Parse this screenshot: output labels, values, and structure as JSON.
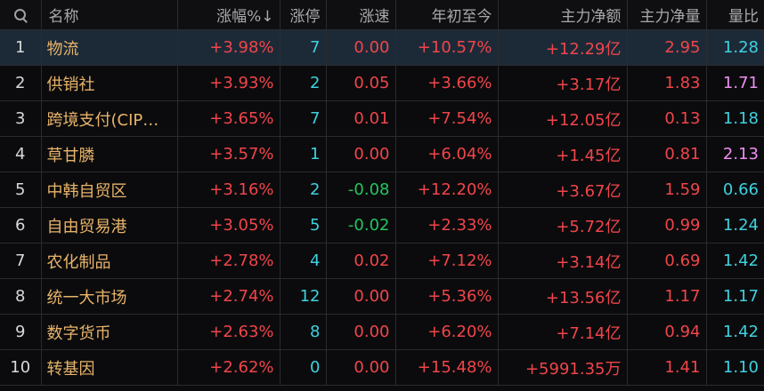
{
  "header": {
    "name": "名称",
    "change_pct": "涨幅%↓",
    "limit_up": "涨停",
    "speed": "涨速",
    "ytd": "年初至今",
    "main_net": "主力净额",
    "main_net_ratio": "主力净量",
    "volume_ratio": "量比"
  },
  "rows": [
    {
      "idx": "1",
      "name": "物流",
      "change_pct": "+3.98%",
      "limit_up": "7",
      "speed": "0.00",
      "ytd": "+10.57%",
      "main_net": "+12.29亿",
      "main_net_ratio": "2.95",
      "volume_ratio": "1.28"
    },
    {
      "idx": "2",
      "name": "供销社",
      "change_pct": "+3.93%",
      "limit_up": "2",
      "speed": "0.05",
      "ytd": "+3.66%",
      "main_net": "+3.17亿",
      "main_net_ratio": "1.83",
      "volume_ratio": "1.71"
    },
    {
      "idx": "3",
      "name": "跨境支付(CIP…",
      "change_pct": "+3.65%",
      "limit_up": "7",
      "speed": "0.01",
      "ytd": "+7.54%",
      "main_net": "+12.05亿",
      "main_net_ratio": "0.13",
      "volume_ratio": "1.18"
    },
    {
      "idx": "4",
      "name": "草甘膦",
      "change_pct": "+3.57%",
      "limit_up": "1",
      "speed": "0.00",
      "ytd": "+6.04%",
      "main_net": "+1.45亿",
      "main_net_ratio": "0.81",
      "volume_ratio": "2.13"
    },
    {
      "idx": "5",
      "name": "中韩自贸区",
      "change_pct": "+3.16%",
      "limit_up": "2",
      "speed": "-0.08",
      "ytd": "+12.20%",
      "main_net": "+3.67亿",
      "main_net_ratio": "1.59",
      "volume_ratio": "0.66"
    },
    {
      "idx": "6",
      "name": "自由贸易港",
      "change_pct": "+3.05%",
      "limit_up": "5",
      "speed": "-0.02",
      "ytd": "+2.33%",
      "main_net": "+5.72亿",
      "main_net_ratio": "0.99",
      "volume_ratio": "1.24"
    },
    {
      "idx": "7",
      "name": "农化制品",
      "change_pct": "+2.78%",
      "limit_up": "4",
      "speed": "0.02",
      "ytd": "+7.12%",
      "main_net": "+3.14亿",
      "main_net_ratio": "0.69",
      "volume_ratio": "1.42"
    },
    {
      "idx": "8",
      "name": "统一大市场",
      "change_pct": "+2.74%",
      "limit_up": "12",
      "speed": "0.00",
      "ytd": "+5.36%",
      "main_net": "+13.56亿",
      "main_net_ratio": "1.17",
      "volume_ratio": "1.17"
    },
    {
      "idx": "9",
      "name": "数字货币",
      "change_pct": "+2.63%",
      "limit_up": "8",
      "speed": "0.00",
      "ytd": "+6.20%",
      "main_net": "+7.14亿",
      "main_net_ratio": "0.94",
      "volume_ratio": "1.42"
    },
    {
      "idx": "10",
      "name": "转基因",
      "change_pct": "+2.62%",
      "limit_up": "0",
      "speed": "0.00",
      "ytd": "+15.48%",
      "main_net": "+5991.35万",
      "main_net_ratio": "1.41",
      "volume_ratio": "1.10"
    }
  ],
  "colors": {
    "up": "#f0454a",
    "down": "#22c55e",
    "count": "#3ed1df",
    "ratio_high": "#ee8ff0",
    "name": "#e8b46a",
    "selected_row": "#1c2a38"
  },
  "icons": {
    "search": "search-icon"
  }
}
